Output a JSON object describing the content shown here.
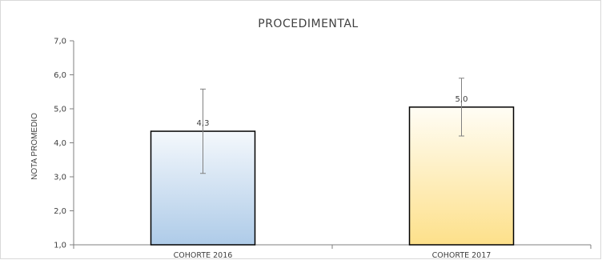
{
  "chart_data": {
    "type": "bar",
    "title": "PROCEDIMENTAL",
    "xlabel": "",
    "ylabel": "NOTA PROMEDIO",
    "categories": [
      "COHORTE 2016",
      "COHORTE 2017"
    ],
    "values": [
      4.34,
      5.05
    ],
    "data_labels": [
      "4,3",
      "5,0"
    ],
    "error_bars": [
      {
        "low": 3.1,
        "high": 5.58
      },
      {
        "low": 4.2,
        "high": 5.9
      }
    ],
    "ylim": [
      1.0,
      7.0
    ],
    "yticks": [
      1.0,
      2.0,
      3.0,
      4.0,
      5.0,
      6.0,
      7.0
    ],
    "ytick_labels": [
      "1,0",
      "2,0",
      "3,0",
      "4,0",
      "5,0",
      "6,0",
      "7,0"
    ],
    "grid": false,
    "legend": "none",
    "colors": {
      "bar_1_top": "#f4f8fc",
      "bar_1_bottom": "#aecbe8",
      "bar_2_top": "#fffdf5",
      "bar_2_bottom": "#fde08a",
      "bar_border": "#000000",
      "axis": "#7f7f7f",
      "error_bar": "#808080",
      "text": "#404040"
    }
  }
}
